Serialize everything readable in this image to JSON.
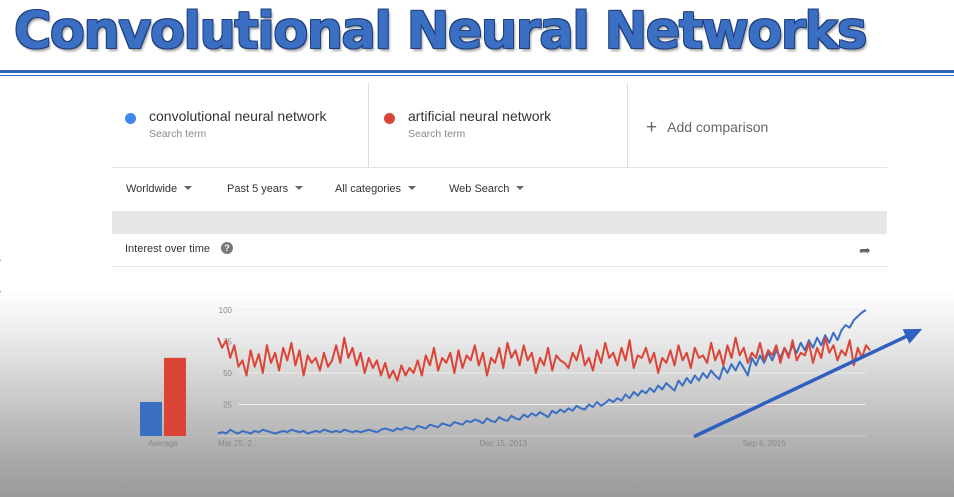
{
  "slide": {
    "title": "Convolutional Neural Networks"
  },
  "terms": [
    {
      "name": "convolutional neural network",
      "sub": "Search term",
      "color": "#4285f4"
    },
    {
      "name": "artificial neural network",
      "sub": "Search term",
      "color": "#db4437"
    }
  ],
  "add_comparison": {
    "icon": "plus-icon",
    "label": "Add comparison"
  },
  "filters": [
    {
      "label": "Worldwide"
    },
    {
      "label": "Past 5 years"
    },
    {
      "label": "All categories"
    },
    {
      "label": "Web Search"
    }
  ],
  "interest": {
    "label": "Interest over time",
    "help_icon": "help-icon",
    "share_icon": "share-icon",
    "help_glyph": "?",
    "share_glyph": "➦"
  },
  "chart_data": {
    "type": "line",
    "y_ticks": [
      "100",
      "75",
      "50",
      "25"
    ],
    "ylim": [
      0,
      100
    ],
    "x_tick_labels": [
      "Mar 25, 2...",
      "Dec 15, 2013",
      "Sep 6, 2015"
    ],
    "average_bars": {
      "label": "Average",
      "values": [
        27,
        62
      ],
      "colors": [
        "#3a6fc4",
        "#db4437"
      ]
    },
    "series": [
      {
        "color": "#3a6fc4",
        "values": [
          2,
          3,
          2,
          5,
          3,
          2,
          4,
          3,
          2,
          4,
          3,
          5,
          4,
          3,
          2,
          3,
          4,
          3,
          5,
          4,
          3,
          4,
          2,
          3,
          4,
          3,
          5,
          4,
          3,
          4,
          3,
          5,
          4,
          3,
          4,
          3,
          4,
          5,
          4,
          3,
          5,
          6,
          5,
          4,
          6,
          5,
          7,
          6,
          5,
          8,
          7,
          6,
          9,
          8,
          7,
          10,
          9,
          8,
          11,
          10,
          9,
          12,
          11,
          13,
          12,
          10,
          14,
          12,
          11,
          15,
          13,
          12,
          16,
          14,
          13,
          17,
          15,
          18,
          16,
          19,
          17,
          15,
          20,
          18,
          21,
          19,
          22,
          20,
          24,
          22,
          21,
          25,
          23,
          27,
          24,
          26,
          29,
          27,
          30,
          28,
          33,
          30,
          35,
          32,
          36,
          34,
          38,
          35,
          40,
          37,
          42,
          39,
          36,
          44,
          40,
          46,
          42,
          48,
          44,
          50,
          46,
          52,
          48,
          45,
          55,
          50,
          57,
          52,
          59,
          54,
          48,
          62,
          56,
          64,
          58,
          66,
          60,
          68,
          62,
          70,
          64,
          72,
          66,
          74,
          68,
          76,
          70,
          78,
          72,
          80,
          74,
          82,
          76,
          84,
          88,
          86,
          92,
          95,
          98,
          100
        ]
      },
      {
        "color": "#db4437",
        "values": [
          78,
          70,
          76,
          62,
          72,
          55,
          60,
          48,
          68,
          55,
          65,
          50,
          72,
          58,
          66,
          52,
          70,
          60,
          74,
          56,
          68,
          48,
          64,
          58,
          62,
          52,
          66,
          55,
          60,
          72,
          58,
          78,
          62,
          70,
          56,
          66,
          50,
          62,
          54,
          60,
          48,
          58,
          46,
          52,
          44,
          56,
          48,
          54,
          50,
          60,
          48,
          64,
          56,
          70,
          52,
          62,
          58,
          66,
          50,
          68,
          54,
          64,
          60,
          72,
          56,
          66,
          48,
          62,
          58,
          70,
          54,
          74,
          62,
          68,
          56,
          72,
          60,
          66,
          50,
          62,
          56,
          70,
          52,
          64,
          60,
          58,
          54,
          66,
          60,
          72,
          56,
          62,
          52,
          68,
          58,
          74,
          62,
          66,
          56,
          70,
          60,
          76,
          54,
          64,
          62,
          70,
          58,
          66,
          50,
          62,
          58,
          68,
          56,
          72,
          60,
          66,
          54,
          70,
          62,
          64,
          58,
          74,
          60,
          68,
          56,
          72,
          62,
          78,
          64,
          70,
          58,
          66,
          62,
          74,
          60,
          68,
          64,
          72,
          58,
          70,
          62,
          76,
          60,
          66,
          64,
          74,
          58,
          70,
          62,
          78,
          66,
          72,
          60,
          68,
          64,
          76,
          56,
          70,
          62,
          72,
          68
        ]
      }
    ],
    "trend_arrow": {
      "x0_index": 122,
      "y0": 0,
      "x1_index": 170,
      "y1": 83,
      "color": "#2f5fc0"
    }
  }
}
